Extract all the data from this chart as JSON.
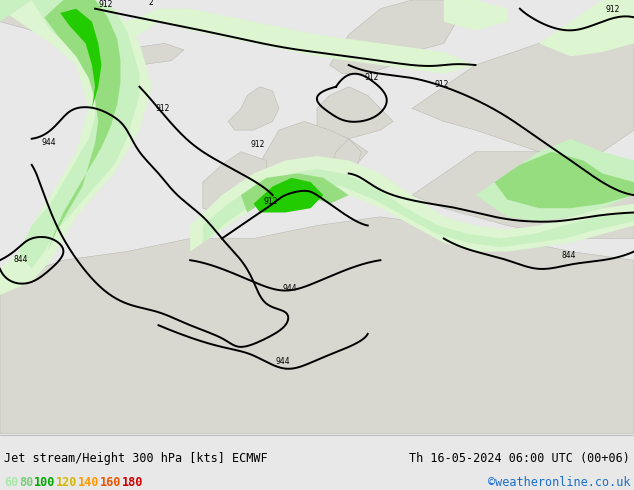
{
  "title_left": "Jet stream/Height 300 hPa [kts] ECMWF",
  "title_right": "Th 16-05-2024 06:00 UTC (00+06)",
  "credit": "©weatheronline.co.uk",
  "legend_values": [
    "60",
    "80",
    "100",
    "120",
    "140",
    "160",
    "180"
  ],
  "legend_colors": [
    "#aae8aa",
    "#78cd78",
    "#00aa00",
    "#d4b800",
    "#ff9900",
    "#ee5500",
    "#cc0000"
  ],
  "bg_color": "#e8e8e8",
  "map_bg": "#f0f0ee",
  "title_fontsize": 8.5,
  "credit_fontsize": 8.5,
  "legend_fontsize": 8.5,
  "light_green": "#c8f0c0",
  "mid_green": "#96dd80",
  "dark_green": "#22cc00",
  "very_light_green": "#ddf5d0",
  "yellow_green": "#d8f070",
  "contour_lw": 1.4,
  "land_color": "#d8d8d0",
  "sea_color": "#f0f0ee"
}
